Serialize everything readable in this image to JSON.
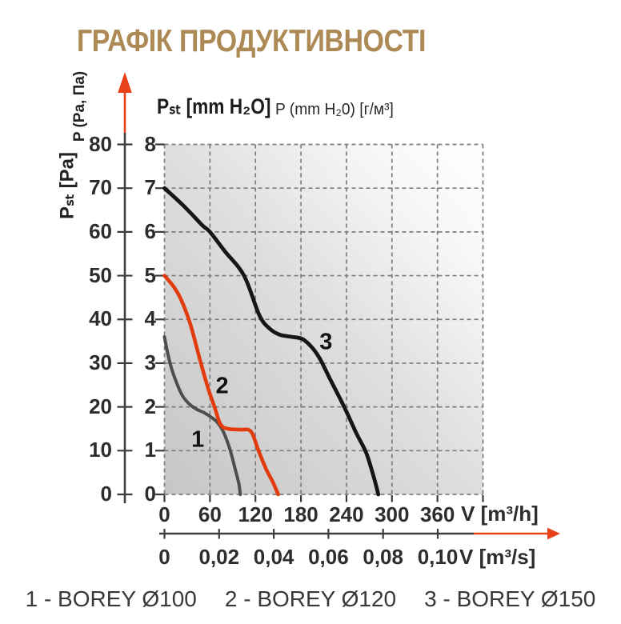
{
  "title": {
    "text": "ГРАФІК ПРОДУКТИВНОСТІ",
    "color": "#ad8a55"
  },
  "chart_data": {
    "type": "line",
    "title": "ГРАФІК ПРОДУКТИВНОСТІ",
    "x_axis_primary": {
      "unit_label": "V [m³/h]",
      "tick_values": [
        0,
        60,
        120,
        180,
        240,
        300,
        360
      ],
      "range": [
        0,
        420
      ],
      "grid_step": 60
    },
    "x_axis_secondary": {
      "unit_label": "V [m³/s]",
      "tick_labels": [
        "0",
        "0,02",
        "0,04",
        "0,06",
        "0,08",
        "0,10"
      ],
      "tick_values": [
        0,
        0.02,
        0.04,
        0.06,
        0.08,
        0.1
      ]
    },
    "y_axis_pa": {
      "rotated_label_bold": "Pₛₜ [Pa]",
      "rotated_label": "P (Pa, Па)",
      "tick_values": [
        80,
        70,
        60,
        50,
        40,
        30,
        20,
        10,
        0
      ],
      "range": [
        0,
        80
      ]
    },
    "y_axis_mm": {
      "header_label_bold": "Pₛₜ [mm H₂O]",
      "header_label_note": "P (mm H₂0) [г/м³]",
      "tick_values": [
        8,
        7,
        6,
        5,
        4,
        3,
        2,
        1,
        0
      ],
      "range": [
        0,
        8
      ]
    },
    "grid": true,
    "legend_position": "bottom",
    "units": {
      "x": "m³/h",
      "y": "mm H₂O"
    },
    "series": [
      {
        "curve_label": "1",
        "name": "1 - BOREY Ø100",
        "color": "#4d4d4d",
        "label_at": [
          44,
          1.24
        ],
        "points": [
          [
            0,
            3.6
          ],
          [
            4,
            3.25
          ],
          [
            9,
            2.9
          ],
          [
            16,
            2.55
          ],
          [
            24,
            2.25
          ],
          [
            32,
            2.08
          ],
          [
            42,
            1.95
          ],
          [
            52,
            1.87
          ],
          [
            62,
            1.76
          ],
          [
            70,
            1.64
          ],
          [
            78,
            1.42
          ],
          [
            86,
            1.05
          ],
          [
            93,
            0.6
          ],
          [
            98,
            0.25
          ],
          [
            100,
            0
          ]
        ]
      },
      {
        "curve_label": "2",
        "name": "2 - BOREY Ø120",
        "color": "#e23c0e",
        "label_at": [
          76,
          2.47
        ],
        "points": [
          [
            0,
            5.0
          ],
          [
            12,
            4.75
          ],
          [
            22,
            4.45
          ],
          [
            34,
            3.9
          ],
          [
            48,
            3.0
          ],
          [
            58,
            2.4
          ],
          [
            66,
            2.0
          ],
          [
            74,
            1.6
          ],
          [
            84,
            1.5
          ],
          [
            100,
            1.48
          ],
          [
            114,
            1.44
          ],
          [
            124,
            1.0
          ],
          [
            134,
            0.58
          ],
          [
            143,
            0.28
          ],
          [
            150,
            0
          ]
        ]
      },
      {
        "curve_label": "3",
        "name": "3 - BOREY Ø150",
        "color": "#161616",
        "label_at": [
          213,
          3.47
        ],
        "points": [
          [
            0,
            7.0
          ],
          [
            25,
            6.6
          ],
          [
            50,
            6.15
          ],
          [
            60,
            6.0
          ],
          [
            80,
            5.55
          ],
          [
            105,
            5.0
          ],
          [
            125,
            4.1
          ],
          [
            138,
            3.8
          ],
          [
            152,
            3.65
          ],
          [
            168,
            3.6
          ],
          [
            182,
            3.55
          ],
          [
            195,
            3.35
          ],
          [
            205,
            3.1
          ],
          [
            218,
            2.65
          ],
          [
            237,
            2.0
          ],
          [
            253,
            1.4
          ],
          [
            266,
            0.95
          ],
          [
            276,
            0.4
          ],
          [
            282,
            0
          ]
        ]
      }
    ]
  },
  "colors": {
    "accent_arrow": "#e8411a",
    "grid": "#7c7c7c",
    "axis": "#3f3f3f",
    "tick_text": "#2d2d2d"
  }
}
